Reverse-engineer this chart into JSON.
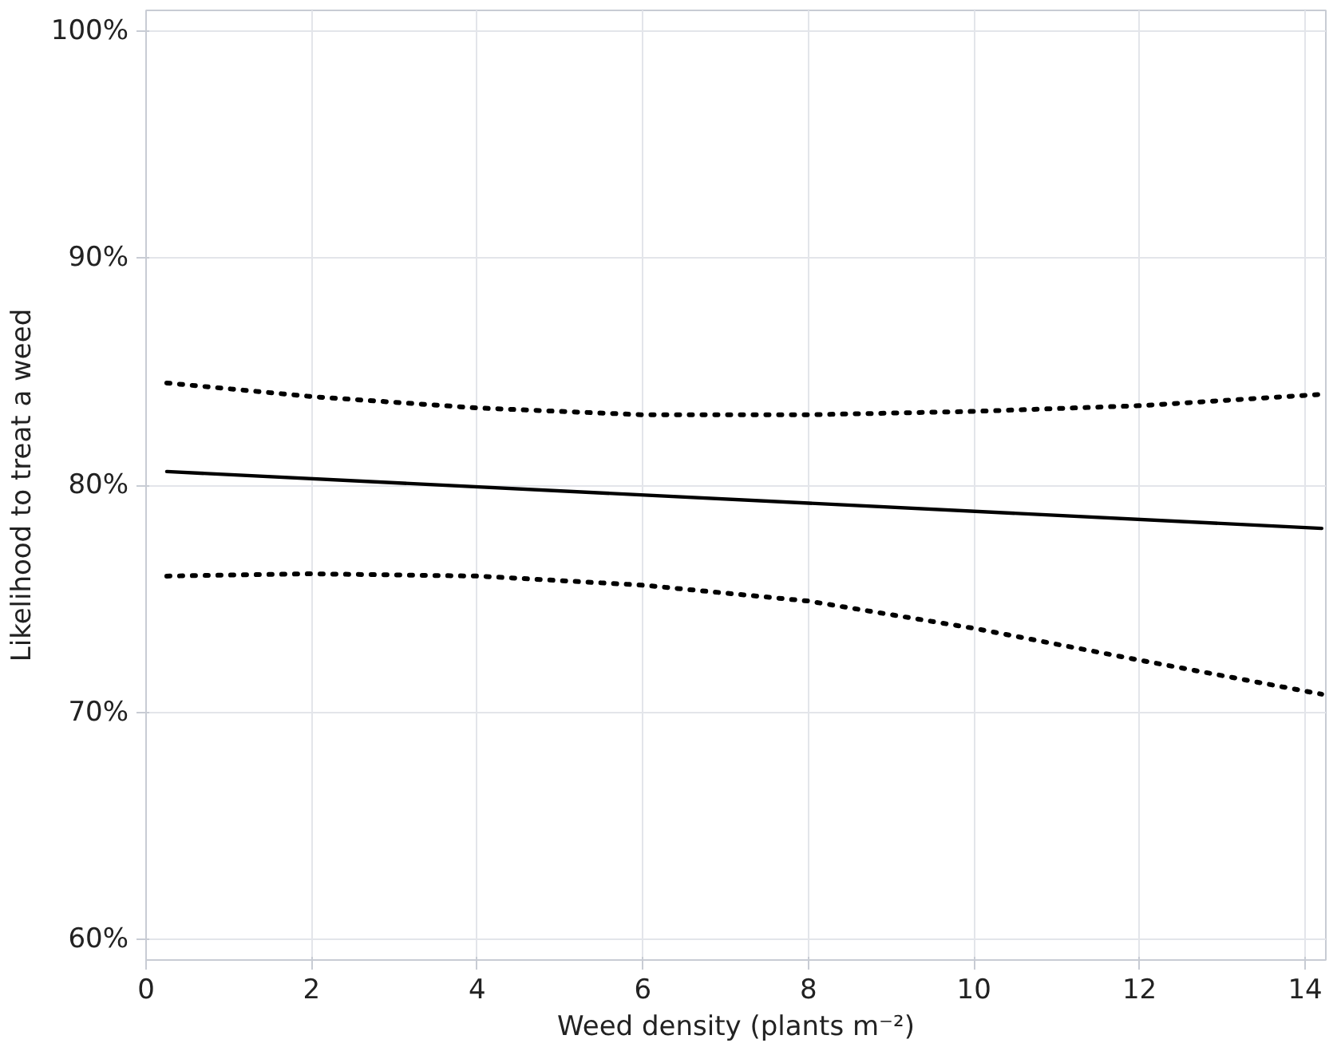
{
  "chart_data": {
    "type": "line",
    "xlabel": "Weed density (plants m⁻²)",
    "ylabel": "Likelihood to treat a weed",
    "xlim": [
      0,
      14.25
    ],
    "xticks": [
      0,
      2,
      4,
      6,
      8,
      10,
      12,
      14
    ],
    "ylim": [
      59.1,
      100.9
    ],
    "yticks": [
      {
        "value": 60,
        "label": "60%"
      },
      {
        "value": 70,
        "label": "70%"
      },
      {
        "value": 80,
        "label": "80%"
      },
      {
        "value": 90,
        "label": "90%"
      },
      {
        "value": 100,
        "label": "100%"
      }
    ],
    "grid": true,
    "marker": "none",
    "series": [
      {
        "color": "#000000",
        "line_style": "dotted",
        "x": [
          0.25,
          2,
          4,
          6,
          8,
          10,
          12,
          14.2
        ],
        "values": [
          84.5,
          83.9,
          83.4,
          83.1,
          83.1,
          83.25,
          83.5,
          84.0
        ]
      },
      {
        "color": "#000000",
        "line_style": "solid",
        "x": [
          0.25,
          14.2
        ],
        "values": [
          80.6,
          78.1
        ]
      },
      {
        "color": "#000000",
        "line_style": "dotted",
        "x": [
          0.25,
          2,
          4,
          6,
          8,
          10,
          12,
          14.2
        ],
        "values": [
          76.0,
          76.1,
          76.0,
          75.6,
          74.9,
          73.7,
          72.3,
          70.8
        ]
      }
    ]
  }
}
